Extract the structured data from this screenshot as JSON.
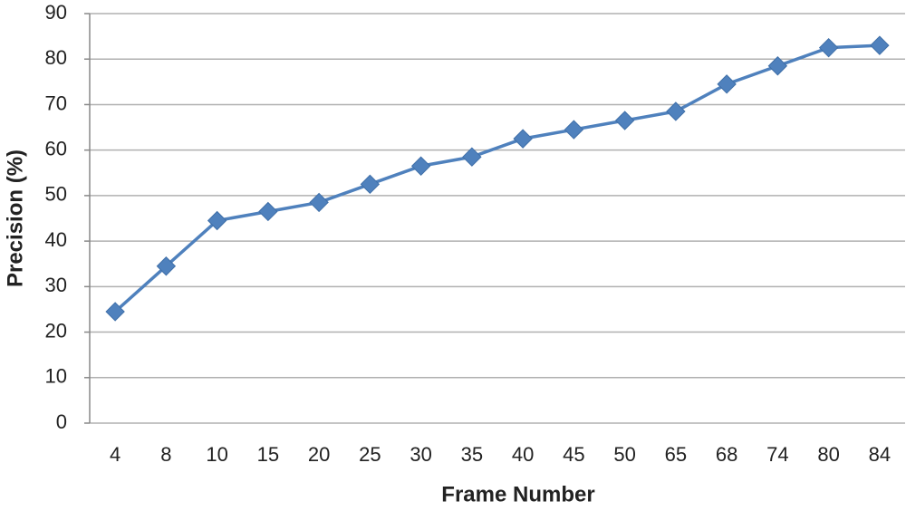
{
  "chart_data": {
    "type": "line",
    "x_label": "Frame Number",
    "y_label": "Precision (%)",
    "categories": [
      "4",
      "8",
      "10",
      "15",
      "20",
      "25",
      "30",
      "35",
      "40",
      "45",
      "50",
      "65",
      "68",
      "74",
      "80",
      "84"
    ],
    "series": [
      {
        "name": "Precision",
        "color": "#4f81bd",
        "values": [
          24.5,
          34.5,
          44.5,
          46.5,
          48.5,
          52.5,
          56.5,
          58.5,
          62.5,
          64.5,
          66.5,
          68.5,
          74.5,
          78.5,
          82.5,
          83
        ]
      }
    ],
    "ylim": [
      0,
      90
    ],
    "yticks": [
      0,
      10,
      20,
      30,
      40,
      50,
      60,
      70,
      80,
      90
    ],
    "grid": true
  }
}
